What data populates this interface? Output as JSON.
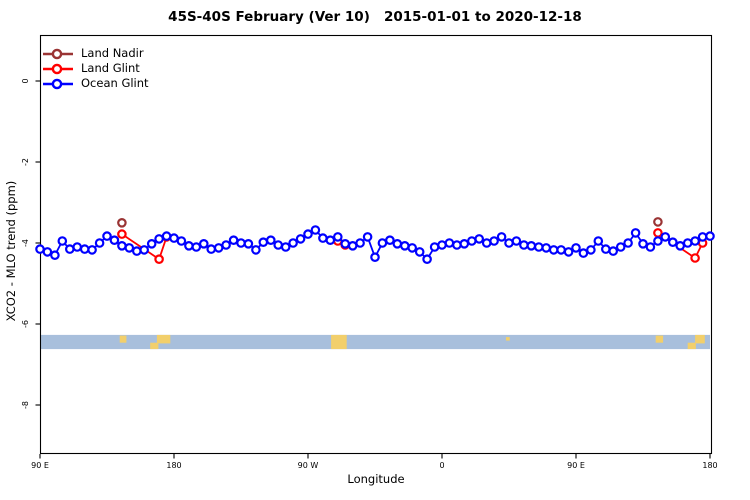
{
  "title": "45S-40S February (Ver 10)   2015-01-01 to 2020-12-18",
  "chart_data": {
    "type": "line",
    "title": "45S-40S February (Ver 10)   2015-01-01 to 2020-12-18",
    "xlabel": "Longitude",
    "ylabel": "XCO2 - MLO trend (ppm)",
    "grid": "off",
    "x_axis": {
      "unwrapped_range": [
        90,
        540
      ],
      "ticks": [
        {
          "lon": 90,
          "label": "90 E"
        },
        {
          "lon": 180,
          "label": "180"
        },
        {
          "lon": 270,
          "label": "90 W"
        },
        {
          "lon": 360,
          "label": "0"
        },
        {
          "lon": 450,
          "label": "90 E"
        },
        {
          "lon": 540,
          "label": "180"
        }
      ]
    },
    "y_axis": {
      "range": [
        -9.2,
        1.1
      ],
      "ticks": [
        {
          "value": 0,
          "label": "0"
        },
        {
          "value": -2,
          "label": "-2"
        },
        {
          "value": -4,
          "label": "-4"
        },
        {
          "value": -6,
          "label": "-6"
        },
        {
          "value": -8,
          "label": "-8"
        }
      ]
    },
    "legend": {
      "position": "top-left",
      "entries": [
        {
          "label": "Land Nadir",
          "color": "#9A3434"
        },
        {
          "label": "Land Glint",
          "color": "#FF0000"
        },
        {
          "label": "Ocean Glint",
          "color": "#0000FF"
        }
      ]
    },
    "series": [
      {
        "name": "Land Glint",
        "color": "#FF0000",
        "marker": "open-circle",
        "segments": [
          [
            [
              145,
              -3.78
            ],
            [
              170,
              -4.4
            ],
            [
              175,
              -3.85
            ]
          ],
          [
            [
              290,
              -3.95
            ],
            [
              295,
              -4.05
            ]
          ],
          [
            [
              505,
              -3.75
            ],
            [
              530,
              -4.37
            ],
            [
              535,
              -4.0
            ]
          ]
        ]
      },
      {
        "name": "Ocean Glint",
        "color": "#0000FF",
        "marker": "open-circle",
        "lon_start": 90,
        "lon_step": 5,
        "values": [
          -4.15,
          -4.22,
          -4.3,
          -3.95,
          -4.15,
          -4.1,
          -4.15,
          -4.17,
          -4.0,
          -3.83,
          -3.93,
          -4.07,
          -4.12,
          -4.2,
          -4.17,
          -4.02,
          -3.9,
          -3.83,
          -3.88,
          -3.95,
          -4.07,
          -4.1,
          -4.02,
          -4.15,
          -4.12,
          -4.05,
          -3.93,
          -4.0,
          -4.02,
          -4.17,
          -3.98,
          -3.93,
          -4.05,
          -4.1,
          -4.0,
          -3.9,
          -3.78,
          -3.68,
          -3.88,
          -3.93,
          -3.85,
          -4.02,
          -4.07,
          -4.0,
          -3.85,
          -4.35,
          -4.0,
          -3.93,
          -4.02,
          -4.07,
          -4.12,
          -4.22,
          -4.4,
          -4.1,
          -4.05,
          -4.0,
          -4.05,
          -4.02,
          -3.95,
          -3.9,
          -4.0,
          -3.95,
          -3.85,
          -4.0,
          -3.95,
          -4.05,
          -4.07,
          -4.1,
          -4.12,
          -4.17,
          -4.17,
          -4.22,
          -4.12,
          -4.25,
          -4.17,
          -3.95,
          -4.15,
          -4.2,
          -4.1,
          -4.0,
          -3.75,
          -4.02,
          -4.1,
          -3.95,
          -3.85,
          -3.98,
          -4.07,
          -4.0,
          -3.95,
          -3.85,
          -3.83
        ]
      },
      {
        "name": "Land Nadir",
        "color": "#9A3434",
        "marker": "open-circle",
        "segments": [
          [
            [
              145,
              -3.5
            ]
          ],
          [
            [
              505,
              -3.48
            ]
          ]
        ]
      }
    ],
    "map_strip": {
      "ocean_color": "#A8BFDC",
      "land_color": "#F2CF6B",
      "value_top": -6.27,
      "value_bottom": -6.62,
      "land_patches": [
        [
          143.5,
          148.0,
          0.05,
          0.55
        ],
        [
          164.0,
          169.5,
          0.55,
          1.0
        ],
        [
          168.5,
          177.5,
          0.0,
          0.6
        ],
        [
          285.5,
          296.0,
          0.0,
          1.0
        ],
        [
          403.0,
          405.5,
          0.15,
          0.4
        ],
        [
          503.5,
          508.5,
          0.05,
          0.55
        ],
        [
          525.0,
          530.5,
          0.55,
          1.0
        ],
        [
          530.0,
          536.5,
          0.0,
          0.6
        ]
      ]
    }
  }
}
